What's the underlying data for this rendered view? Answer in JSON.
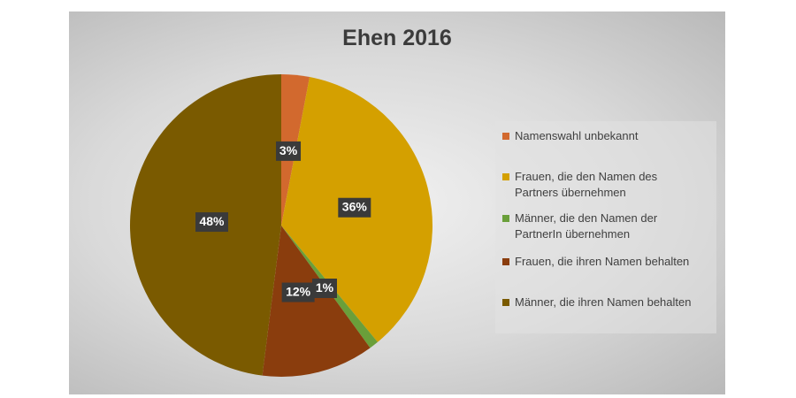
{
  "chart_data": {
    "type": "pie",
    "title": "Ehen 2016",
    "slices": [
      {
        "name": "Namenswahl unbekannt",
        "value": 3,
        "label": "3%",
        "color": "#d2692e"
      },
      {
        "name": "Frauen, die den Namen des Partners übernehmen",
        "value": 36,
        "label": "36%",
        "color": "#d4a000"
      },
      {
        "name": "Männer, die den Namen der PartnerIn übernehmen",
        "value": 1,
        "label": "1%",
        "color": "#6a9f3a"
      },
      {
        "name": "Frauen, die ihren Namen behalten",
        "value": 12,
        "label": "12%",
        "color": "#8a3d0d"
      },
      {
        "name": "Männer, die ihren Namen behalten",
        "value": 48,
        "label": "48%",
        "color": "#7a5a00"
      }
    ],
    "legend": {
      "position": "right",
      "items": [
        {
          "lines": [
            "Namenswahl unbekannt"
          ],
          "color": "#d2692e"
        },
        {
          "lines": [
            "Frauen, die den Namen des",
            "Partners übernehmen"
          ],
          "color": "#d4a000"
        },
        {
          "lines": [
            "Männer, die den Namen der",
            "PartnerIn übernehmen"
          ],
          "color": "#6a9f3a"
        },
        {
          "lines": [
            "Frauen, die ihren Namen behalten"
          ],
          "color": "#8a3d0d"
        },
        {
          "lines": [
            "Männer, die ihren Namen behalten"
          ],
          "color": "#7a5a00"
        }
      ]
    },
    "data_label_style": {
      "background": "#3a3a3a",
      "text_color": "#ffffff"
    }
  }
}
